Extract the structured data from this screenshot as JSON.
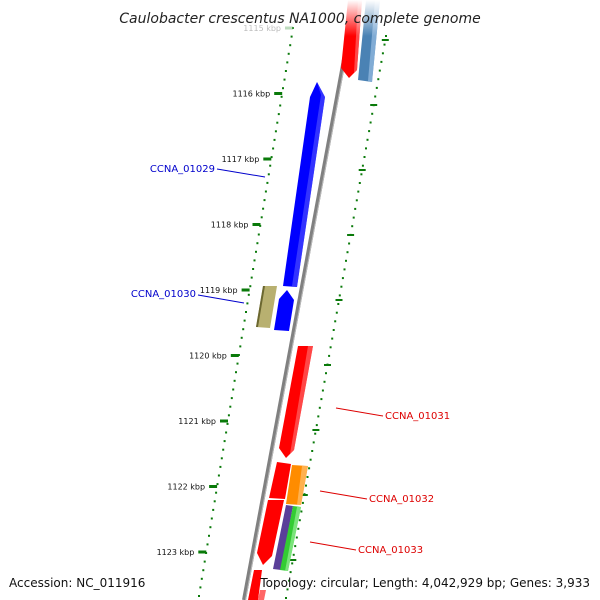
{
  "title": "Caulobacter crescentus NA1000, complete genome",
  "footer": {
    "accession": "Accession: NC_011916",
    "summary": "Topology: circular; Length: 4,042,929 bp; Genes: 3,933"
  },
  "ticks": [
    {
      "label": "1115 kbp",
      "faded": true
    },
    {
      "label": "1116 kbp"
    },
    {
      "label": "1117 kbp"
    },
    {
      "label": "1118 kbp"
    },
    {
      "label": "1119 kbp"
    },
    {
      "label": "1120 kbp"
    },
    {
      "label": "1121 kbp"
    },
    {
      "label": "1122 kbp"
    },
    {
      "label": "1123 kbp"
    }
  ],
  "gene_labels": {
    "ccna_01029": {
      "text": "CCNA_01029",
      "color": "#0000cc"
    },
    "ccna_01030": {
      "text": "CCNA_01030",
      "color": "#0000cc"
    },
    "ccna_01031": {
      "text": "CCNA_01031",
      "color": "#dd0000"
    },
    "ccna_01032": {
      "text": "CCNA_01032",
      "color": "#dd0000"
    },
    "ccna_01033": {
      "text": "CCNA_01033",
      "color": "#dd0000"
    }
  },
  "colors": {
    "backbone": "#808080",
    "forward_gene": "#0000ff",
    "reverse_gene": "#ff0000",
    "steel_blue_feature": "#4a82b4",
    "olive_feature": "#b8b070",
    "orange_feature": "#ff8c00",
    "green_feature": "#33cc33",
    "purple_feature": "#5a3f99",
    "dotted_track": "#0a7a0a"
  }
}
